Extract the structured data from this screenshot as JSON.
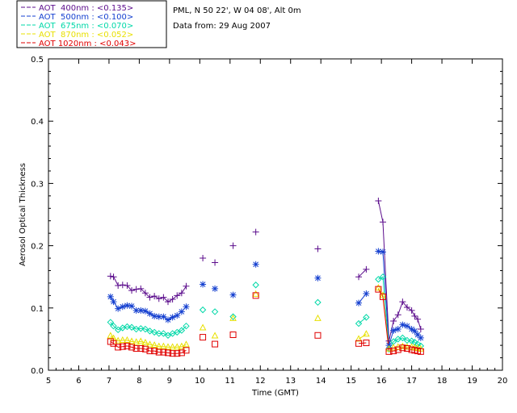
{
  "chart_data": {
    "type": "scatter",
    "title_lines": [
      "PML, N 50 22', W 04 08', Alt 0m",
      "Data from: 29 Aug 2007"
    ],
    "xlabel": "Time (GMT)",
    "ylabel": "Aerosol Optical Thickness",
    "xlim": [
      5,
      20
    ],
    "ylim": [
      0,
      0.5
    ],
    "xticks": [
      5,
      6,
      7,
      8,
      9,
      10,
      11,
      12,
      13,
      14,
      15,
      16,
      17,
      18,
      19,
      20
    ],
    "yticks": [
      "0.0",
      "0.1",
      "0.2",
      "0.3",
      "0.4",
      "0.5"
    ],
    "x": [
      7.05,
      7.15,
      7.3,
      7.45,
      7.6,
      7.75,
      7.9,
      8.05,
      8.2,
      8.35,
      8.5,
      8.65,
      8.8,
      8.95,
      9.1,
      9.25,
      9.4,
      9.55,
      10.1,
      10.5,
      11.1,
      11.85,
      13.9,
      15.25,
      15.5,
      15.9,
      16.05,
      16.25,
      16.4,
      16.55,
      16.7,
      16.85,
      17.0,
      17.1,
      17.2,
      17.3
    ],
    "series": [
      {
        "name": "AOT  400nm : <0.135>",
        "color": "#5b0c8c",
        "marker": "plus",
        "values": [
          0.151,
          0.15,
          0.136,
          0.137,
          0.136,
          0.128,
          0.13,
          0.131,
          0.124,
          0.117,
          0.119,
          0.115,
          0.117,
          0.11,
          0.114,
          0.12,
          0.124,
          0.135,
          0.18,
          0.173,
          0.2,
          0.222,
          0.195,
          0.15,
          0.162,
          0.272,
          0.238,
          0.047,
          0.079,
          0.089,
          0.11,
          0.101,
          0.096,
          0.087,
          0.082,
          0.066
        ]
      },
      {
        "name": "AOT  500nm : <0.100>",
        "color": "#1540d0",
        "marker": "star",
        "values": [
          0.118,
          0.11,
          0.099,
          0.102,
          0.104,
          0.103,
          0.096,
          0.096,
          0.095,
          0.091,
          0.087,
          0.086,
          0.086,
          0.081,
          0.085,
          0.088,
          0.094,
          0.102,
          0.138,
          0.131,
          0.121,
          0.17,
          0.148,
          0.108,
          0.123,
          0.191,
          0.19,
          0.04,
          0.064,
          0.066,
          0.073,
          0.071,
          0.066,
          0.063,
          0.057,
          0.052
        ]
      },
      {
        "name": "AOT  675nm : <0.070>",
        "color": "#00d8a8",
        "marker": "diamond",
        "values": [
          0.077,
          0.071,
          0.065,
          0.068,
          0.07,
          0.069,
          0.066,
          0.067,
          0.066,
          0.063,
          0.061,
          0.059,
          0.059,
          0.056,
          0.059,
          0.061,
          0.064,
          0.071,
          0.097,
          0.094,
          0.086,
          0.137,
          0.109,
          0.075,
          0.085,
          0.146,
          0.15,
          0.034,
          0.046,
          0.05,
          0.052,
          0.048,
          0.047,
          0.045,
          0.042,
          0.039
        ]
      },
      {
        "name": "AOT  870nm : <0.052>",
        "color": "#e8e000",
        "marker": "triangle",
        "values": [
          0.055,
          0.051,
          0.047,
          0.048,
          0.048,
          0.046,
          0.045,
          0.046,
          0.044,
          0.041,
          0.04,
          0.038,
          0.038,
          0.037,
          0.037,
          0.037,
          0.038,
          0.041,
          0.068,
          0.055,
          0.083,
          0.122,
          0.083,
          0.05,
          0.058,
          0.132,
          0.12,
          0.034,
          0.036,
          0.037,
          0.038,
          0.037,
          0.037,
          0.036,
          0.035,
          0.034
        ]
      },
      {
        "name": "AOT 1020nm : <0.043>",
        "color": "#e00000",
        "marker": "square",
        "values": [
          0.046,
          0.043,
          0.037,
          0.038,
          0.039,
          0.037,
          0.035,
          0.035,
          0.034,
          0.031,
          0.031,
          0.029,
          0.029,
          0.028,
          0.027,
          0.027,
          0.028,
          0.032,
          0.053,
          0.042,
          0.057,
          0.12,
          0.056,
          0.043,
          0.044,
          0.13,
          0.118,
          0.03,
          0.031,
          0.033,
          0.036,
          0.035,
          0.033,
          0.032,
          0.031,
          0.03
        ]
      }
    ]
  }
}
